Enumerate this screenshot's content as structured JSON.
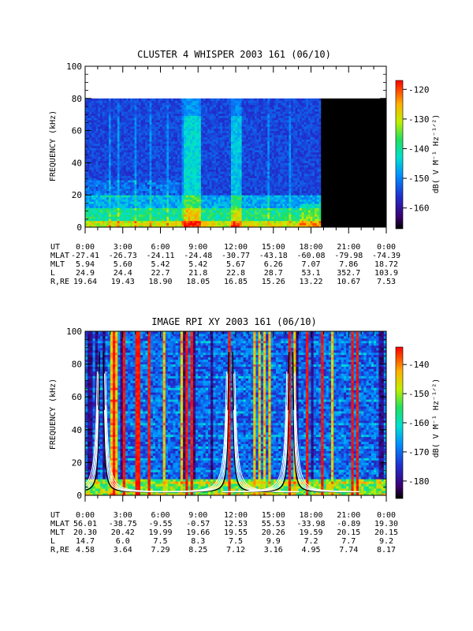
{
  "chart_data": [
    {
      "type": "heatmap",
      "title": "CLUSTER 4 WHISPER 2003 161 (06/10)",
      "ylabel": "FREQUENCY (kHz)",
      "ylim": [
        0,
        100
      ],
      "y_ticks": [
        "0",
        "20",
        "40",
        "60",
        "80",
        "100"
      ],
      "x_unit": "hours UT",
      "xlim": [
        0,
        24
      ],
      "data_extent": {
        "x": [
          0,
          18.8
        ],
        "y": [
          0,
          80
        ]
      },
      "no_data_extent": {
        "x": [
          18.8,
          24
        ],
        "y": [
          0,
          80
        ]
      },
      "colorbar": {
        "label": "dB( V M⁻¹ Hz⁻¹ᐟ²)",
        "range": [
          -167,
          -117
        ],
        "ticks": [
          "-120",
          "-130",
          "-140",
          "-150",
          "-160"
        ],
        "tick_values": [
          -120,
          -130,
          -140,
          -150,
          -160
        ]
      },
      "ephemeris": {
        "rows": [
          {
            "label": "UT",
            "values": [
              "0:00",
              "3:00",
              "6:00",
              "9:00",
              "12:00",
              "15:00",
              "18:00",
              "21:00",
              "0:00"
            ]
          },
          {
            "label": "MLAT",
            "values": [
              "-27.41",
              "-26.73",
              "-24.11",
              "-24.48",
              "-30.77",
              "-43.18",
              "-60.08",
              "-79.98",
              "-74.39"
            ]
          },
          {
            "label": "MLT",
            "values": [
              "5.94",
              "5.60",
              "5.42",
              "5.42",
              "5.67",
              "6.26",
              "7.07",
              "7.86",
              "18.72"
            ]
          },
          {
            "label": "L",
            "values": [
              "24.9",
              "24.4",
              "22.7",
              "21.8",
              "22.8",
              "28.7",
              "53.1",
              "352.7",
              "103.9"
            ]
          },
          {
            "label": "R,RE",
            "values": [
              "19.64",
              "19.43",
              "18.90",
              "18.05",
              "16.85",
              "15.26",
              "13.22",
              "10.67",
              "7.53"
            ]
          }
        ]
      }
    },
    {
      "type": "heatmap",
      "title": "IMAGE RPI XY 2003 161 (06/10)",
      "ylabel": "FREQUENCY (kHz)",
      "ylim": [
        0,
        100
      ],
      "y_ticks": [
        "0",
        "20",
        "40",
        "60",
        "80",
        "100"
      ],
      "x_unit": "hours UT",
      "xlim": [
        0,
        24
      ],
      "colorbar": {
        "label": "dB( V M⁻¹ Hz⁻¹ᐟ²)",
        "range": [
          -186,
          -134
        ],
        "ticks": [
          "-140",
          "-150",
          "-160",
          "-170",
          "-180"
        ],
        "tick_values": [
          -140,
          -150,
          -160,
          -170,
          -180
        ]
      },
      "overlay_curves": {
        "line_colors": [
          "#ffffff",
          "#000000"
        ],
        "perigee_hours": [
          1.3,
          11.6,
          16.4
        ]
      },
      "ephemeris": {
        "rows": [
          {
            "label": "UT",
            "values": [
              "0:00",
              "3:00",
              "6:00",
              "9:00",
              "12:00",
              "15:00",
              "18:00",
              "21:00",
              "0:00"
            ]
          },
          {
            "label": "MLAT",
            "values": [
              "56.01",
              "-38.75",
              "-9.55",
              "-0.57",
              "12.53",
              "55.53",
              "-33.98",
              "-0.89",
              "19.30"
            ]
          },
          {
            "label": "MLT",
            "values": [
              "20.30",
              "20.42",
              "19.99",
              "19.66",
              "19.55",
              "20.26",
              "19.59",
              "20.15",
              "20.15"
            ]
          },
          {
            "label": "L",
            "values": [
              "14.7",
              "6.0",
              "7.5",
              "8.3",
              "7.5",
              "9.9",
              "7.2",
              "7.7",
              "9.2"
            ]
          },
          {
            "label": "R,RE",
            "values": [
              "4.58",
              "3.64",
              "7.29",
              "8.25",
              "7.12",
              "3.16",
              "4.95",
              "7.74",
              "8.17"
            ]
          }
        ]
      }
    }
  ]
}
